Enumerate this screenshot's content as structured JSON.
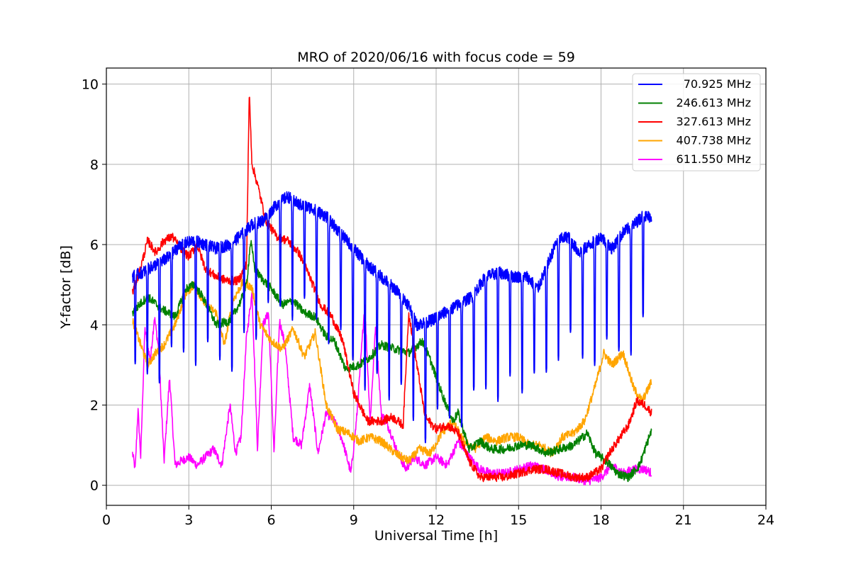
{
  "chart_data": {
    "type": "line",
    "title": "MRO of 2020/06/16 with focus code = 59",
    "xlabel": "Universal Time [h]",
    "ylabel": "Y-factor [dB]",
    "xlim": [
      0,
      24
    ],
    "ylim": [
      -0.5,
      10.4
    ],
    "xticks": [
      0,
      3,
      6,
      9,
      12,
      15,
      18,
      21,
      24
    ],
    "yticks": [
      0,
      2,
      4,
      6,
      8,
      10
    ],
    "grid": true,
    "legend_position": "top-right",
    "series": [
      {
        "name": "70.925 MHz",
        "color": "#0000ff",
        "dips": {
          "start": 1.05,
          "end": 19.8,
          "spacing": 0.44,
          "width": 0.06,
          "noise": 0.15
        },
        "x": [
          0.95,
          1.3,
          1.8,
          2.3,
          2.7,
          3.2,
          3.6,
          4.0,
          4.5,
          5.0,
          5.3,
          5.7,
          6.2,
          6.6,
          7.0,
          7.5,
          8.0,
          8.5,
          9.0,
          9.5,
          10.0,
          10.5,
          11.0,
          11.3,
          11.8,
          12.3,
          12.8,
          13.3,
          13.8,
          14.3,
          14.8,
          15.3,
          15.7,
          16.0,
          16.4,
          16.8,
          17.2,
          17.6,
          18.0,
          18.4,
          18.8,
          19.2,
          19.5,
          19.85
        ],
        "y": [
          5.2,
          5.3,
          5.5,
          5.7,
          6.0,
          6.1,
          6.0,
          5.9,
          6.0,
          6.3,
          6.5,
          6.6,
          7.0,
          7.2,
          7.0,
          6.9,
          6.7,
          6.3,
          5.9,
          5.5,
          5.2,
          4.9,
          4.5,
          4.0,
          4.1,
          4.3,
          4.5,
          4.7,
          5.2,
          5.3,
          5.2,
          5.2,
          4.9,
          5.4,
          6.1,
          6.2,
          5.8,
          6.0,
          6.2,
          5.9,
          6.3,
          6.5,
          6.7,
          6.7
        ]
      },
      {
        "name": "246.613 MHz",
        "color": "#008000",
        "x": [
          0.95,
          1.2,
          1.5,
          2.0,
          2.5,
          2.9,
          3.2,
          3.5,
          4.0,
          4.5,
          4.9,
          5.1,
          5.25,
          5.4,
          5.6,
          6.0,
          6.4,
          6.8,
          7.2,
          7.6,
          8.0,
          8.3,
          8.7,
          9.2,
          9.6,
          10.0,
          10.5,
          11.0,
          11.5,
          11.8,
          12.2,
          12.6,
          12.8,
          13.2,
          13.6,
          14.0,
          14.5,
          15.0,
          15.5,
          16.0,
          16.5,
          17.0,
          17.5,
          17.8,
          18.2,
          18.6,
          19.0,
          19.4,
          19.7,
          19.85
        ],
        "y": [
          4.3,
          4.5,
          4.7,
          4.4,
          4.2,
          4.9,
          5.0,
          4.7,
          4.0,
          4.1,
          4.6,
          5.0,
          6.1,
          5.4,
          5.2,
          4.9,
          4.5,
          4.6,
          4.3,
          4.2,
          3.7,
          3.6,
          2.9,
          3.0,
          3.2,
          3.5,
          3.4,
          3.3,
          3.6,
          3.1,
          2.3,
          1.6,
          1.8,
          0.9,
          1.1,
          0.9,
          0.9,
          1.0,
          1.0,
          0.8,
          0.9,
          1.0,
          1.3,
          0.8,
          0.6,
          0.3,
          0.2,
          0.5,
          1.1,
          1.4
        ]
      },
      {
        "name": "327.613 MHz",
        "color": "#ff0000",
        "x": [
          0.95,
          1.2,
          1.5,
          1.8,
          2.1,
          2.4,
          2.7,
          3.0,
          3.3,
          3.6,
          4.0,
          4.4,
          4.8,
          5.1,
          5.2,
          5.3,
          5.5,
          5.8,
          6.2,
          6.6,
          7.0,
          7.4,
          7.8,
          8.2,
          8.6,
          9.0,
          9.5,
          10.0,
          10.4,
          10.8,
          11.0,
          11.3,
          11.6,
          12.0,
          12.4,
          12.8,
          13.2,
          13.6,
          14.0,
          14.5,
          15.0,
          15.5,
          16.0,
          16.5,
          17.0,
          17.5,
          18.0,
          18.3,
          18.6,
          19.0,
          19.3,
          19.6,
          19.85
        ],
        "y": [
          4.8,
          5.3,
          6.1,
          5.8,
          6.1,
          6.2,
          5.9,
          5.7,
          6.0,
          5.4,
          5.2,
          5.1,
          5.1,
          5.5,
          9.8,
          8.0,
          7.5,
          6.6,
          6.2,
          6.1,
          5.8,
          5.2,
          4.5,
          4.2,
          3.6,
          2.3,
          1.6,
          1.6,
          1.7,
          1.5,
          4.3,
          3.0,
          1.7,
          1.4,
          1.5,
          1.3,
          0.6,
          0.2,
          0.2,
          0.2,
          0.3,
          0.4,
          0.4,
          0.3,
          0.2,
          0.2,
          0.4,
          0.8,
          1.1,
          1.5,
          2.1,
          2.0,
          1.8
        ]
      },
      {
        "name": "407.738 MHz",
        "color": "#ffa500",
        "x": [
          0.95,
          1.2,
          1.5,
          1.8,
          2.1,
          2.5,
          2.9,
          3.2,
          3.6,
          4.0,
          4.3,
          4.6,
          5.0,
          5.3,
          5.6,
          6.0,
          6.4,
          6.8,
          7.2,
          7.6,
          8.0,
          8.4,
          8.8,
          9.2,
          9.6,
          10.0,
          10.5,
          11.0,
          11.4,
          11.8,
          12.2,
          12.6,
          13.0,
          13.4,
          13.8,
          14.2,
          14.6,
          15.0,
          15.4,
          15.8,
          16.2,
          16.6,
          17.0,
          17.4,
          17.8,
          18.1,
          18.4,
          18.8,
          19.2,
          19.5,
          19.85
        ],
        "y": [
          4.1,
          3.6,
          3.0,
          3.3,
          3.5,
          4.0,
          4.8,
          5.0,
          4.5,
          4.3,
          3.5,
          4.6,
          5.1,
          4.9,
          4.0,
          3.6,
          3.4,
          3.9,
          3.2,
          3.8,
          2.0,
          1.4,
          1.3,
          1.1,
          1.2,
          1.1,
          0.8,
          0.6,
          0.9,
          0.8,
          1.3,
          1.6,
          1.1,
          0.9,
          1.2,
          1.1,
          1.2,
          1.2,
          1.0,
          1.0,
          0.8,
          1.2,
          1.3,
          1.6,
          2.5,
          3.3,
          3.0,
          3.3,
          2.4,
          2.1,
          2.6
        ]
      },
      {
        "name": "611.550 MHz",
        "color": "#ff00ff",
        "x": [
          0.95,
          1.05,
          1.15,
          1.25,
          1.4,
          1.6,
          1.75,
          1.9,
          2.1,
          2.3,
          2.5,
          2.7,
          3.0,
          3.3,
          3.6,
          3.9,
          4.2,
          4.5,
          4.7,
          4.9,
          5.1,
          5.3,
          5.5,
          5.7,
          5.9,
          6.1,
          6.3,
          6.5,
          6.8,
          7.1,
          7.4,
          7.7,
          8.0,
          8.3,
          8.6,
          8.9,
          9.1,
          9.4,
          9.6,
          9.8,
          10.0,
          10.3,
          10.6,
          10.9,
          11.2,
          11.6,
          12.0,
          12.4,
          12.8,
          13.2,
          13.6,
          14.0,
          14.5,
          15.0,
          15.5,
          16.0,
          16.5,
          17.0,
          17.5,
          18.0,
          18.4,
          18.8,
          19.2,
          19.6,
          19.85
        ],
        "y": [
          0.8,
          0.4,
          1.9,
          0.7,
          3.9,
          3.1,
          4.2,
          3.4,
          0.6,
          2.7,
          0.5,
          0.6,
          0.7,
          0.5,
          0.7,
          0.9,
          0.5,
          2.0,
          0.8,
          1.2,
          3.7,
          4.8,
          0.9,
          4.0,
          4.3,
          0.8,
          4.1,
          3.5,
          1.2,
          1.0,
          2.5,
          0.8,
          1.8,
          1.6,
          1.1,
          0.3,
          1.6,
          4.5,
          1.6,
          4.0,
          1.8,
          1.4,
          0.8,
          0.4,
          0.7,
          0.5,
          0.7,
          0.5,
          1.1,
          0.7,
          0.4,
          0.3,
          0.3,
          0.4,
          0.5,
          0.4,
          0.2,
          0.2,
          0.1,
          0.2,
          0.5,
          0.3,
          0.4,
          0.4,
          0.3
        ]
      }
    ]
  }
}
